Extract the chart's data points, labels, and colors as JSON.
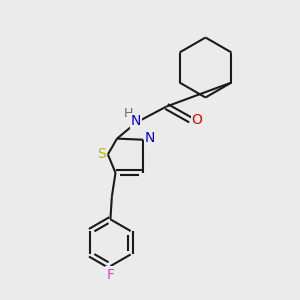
{
  "bg_color": "#ebebeb",
  "bond_color": "#1a1a1a",
  "line_width": 1.5,
  "atom_colors": {
    "S": "#b8b800",
    "N": "#0000ee",
    "O": "#ee0000",
    "F": "#dd44cc",
    "H": "#557755"
  },
  "font_size": 10,
  "fig_width": 3.0,
  "fig_height": 3.0,
  "dpi": 100
}
